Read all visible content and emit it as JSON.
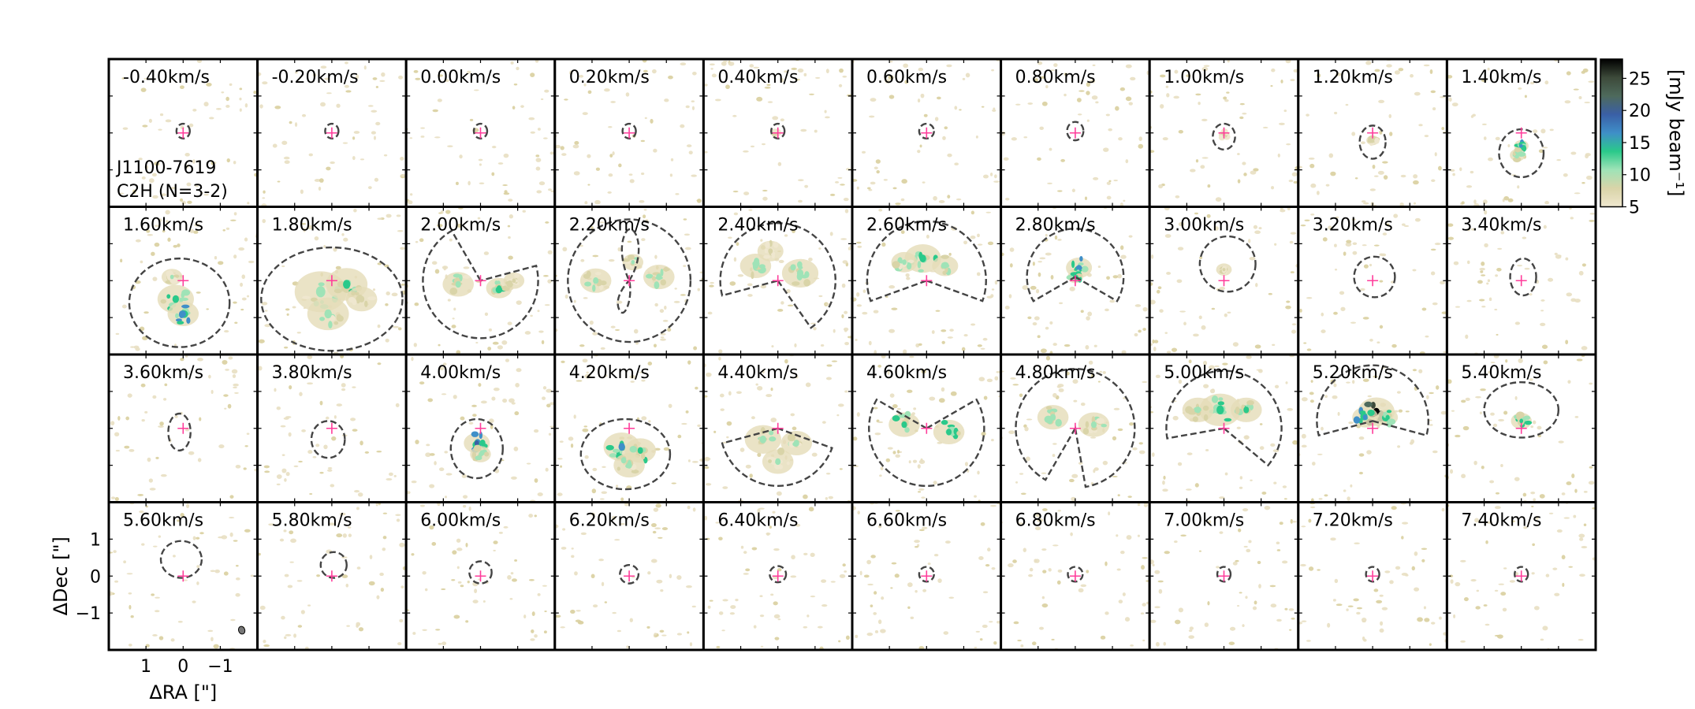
{
  "chart_data": {
    "type": "heatmap",
    "layout": {
      "rows": 4,
      "cols": 10
    },
    "source_name": "J1100-7619",
    "molecule_label": "C2H (N=3-2)",
    "velocity_unit": "km/s",
    "channel_labels": [
      "-0.40km/s",
      "-0.20km/s",
      "0.00km/s",
      "0.20km/s",
      "0.40km/s",
      "0.60km/s",
      "0.80km/s",
      "1.00km/s",
      "1.20km/s",
      "1.40km/s",
      "1.60km/s",
      "1.80km/s",
      "2.00km/s",
      "2.20km/s",
      "2.40km/s",
      "2.60km/s",
      "2.80km/s",
      "3.00km/s",
      "3.20km/s",
      "3.40km/s",
      "3.60km/s",
      "3.80km/s",
      "4.00km/s",
      "4.20km/s",
      "4.40km/s",
      "4.60km/s",
      "4.80km/s",
      "5.00km/s",
      "5.20km/s",
      "5.40km/s",
      "5.60km/s",
      "5.80km/s",
      "6.00km/s",
      "6.20km/s",
      "6.40km/s",
      "6.60km/s",
      "6.80km/s",
      "7.00km/s",
      "7.20km/s",
      "7.40km/s"
    ],
    "channel_velocities": [
      -0.4,
      -0.2,
      0.0,
      0.2,
      0.4,
      0.6,
      0.8,
      1.0,
      1.2,
      1.4,
      1.6,
      1.8,
      2.0,
      2.2,
      2.4,
      2.6,
      2.8,
      3.0,
      3.2,
      3.4,
      3.6,
      3.8,
      4.0,
      4.2,
      4.4,
      4.6,
      4.8,
      5.0,
      5.2,
      5.4,
      5.6,
      5.8,
      6.0,
      6.2,
      6.4,
      6.6,
      6.8,
      7.0,
      7.2,
      7.4
    ],
    "xlabel": "ΔRA [\"]",
    "ylabel": "ΔDec [\"]",
    "xlim": [
      2.0,
      -2.0
    ],
    "ylim": [
      -2.0,
      2.0
    ],
    "x_ticks": [
      1,
      0,
      -1
    ],
    "x_tick_labels": [
      "1",
      "0",
      "−1"
    ],
    "y_ticks": [
      1,
      0,
      -1
    ],
    "y_tick_labels": [
      "1",
      "0",
      "−1"
    ],
    "colorbar": {
      "label": "[mJy beam⁻¹]",
      "ticks": [
        5,
        10,
        15,
        20,
        25
      ],
      "range": [
        5,
        28
      ],
      "colors": [
        "#efe7cf",
        "#d9d4a8",
        "#9fe3b7",
        "#2ac98a",
        "#3f8fc8",
        "#3a5fa6",
        "#4e6a5c",
        "#3d4a3a",
        "#000000"
      ]
    },
    "marker_color": "#ff3d9b",
    "mask_color": "#444444",
    "channels": [
      {
        "mask": {
          "type": "ellipse",
          "dx": 0,
          "dy": 0.05,
          "rx": 0.18,
          "ry": 0.2
        },
        "emission": []
      },
      {
        "mask": {
          "type": "ellipse",
          "dx": 0,
          "dy": 0.05,
          "rx": 0.18,
          "ry": 0.2
        },
        "emission": []
      },
      {
        "mask": {
          "type": "ellipse",
          "dx": 0,
          "dy": 0.05,
          "rx": 0.18,
          "ry": 0.2
        },
        "emission": []
      },
      {
        "mask": {
          "type": "ellipse",
          "dx": 0,
          "dy": 0.05,
          "rx": 0.18,
          "ry": 0.2
        },
        "emission": []
      },
      {
        "mask": {
          "type": "ellipse",
          "dx": 0,
          "dy": 0.05,
          "rx": 0.18,
          "ry": 0.2
        },
        "emission": [
          {
            "x": 0.05,
            "y": -0.02,
            "r": 0.08,
            "v": 8
          }
        ]
      },
      {
        "mask": {
          "type": "ellipse",
          "dx": 0,
          "dy": 0.05,
          "rx": 0.2,
          "ry": 0.2
        },
        "emission": []
      },
      {
        "mask": {
          "type": "ellipse",
          "dx": 0,
          "dy": 0.05,
          "rx": 0.22,
          "ry": 0.25
        },
        "emission": []
      },
      {
        "mask": {
          "type": "ellipse",
          "dx": 0,
          "dy": -0.1,
          "rx": 0.3,
          "ry": 0.35
        },
        "emission": [
          {
            "x": 0,
            "y": -0.05,
            "r": 0.1,
            "v": 8
          }
        ]
      },
      {
        "mask": {
          "type": "ellipse",
          "dx": 0,
          "dy": -0.25,
          "rx": 0.35,
          "ry": 0.45
        },
        "emission": [
          {
            "x": 0,
            "y": -0.2,
            "r": 0.12,
            "v": 9
          }
        ]
      },
      {
        "mask": {
          "type": "ellipse",
          "dx": 0,
          "dy": -0.55,
          "rx": 0.6,
          "ry": 0.65
        },
        "emission": [
          {
            "x": 0,
            "y": -0.35,
            "r": 0.14,
            "v": 16
          },
          {
            "x": 0.1,
            "y": -0.6,
            "r": 0.15,
            "v": 12
          }
        ]
      },
      {
        "mask": {
          "type": "blob",
          "dx": 0.1,
          "dy": -0.6,
          "rx": 1.35,
          "ry": 1.2
        },
        "emission": [
          {
            "x": 0.2,
            "y": -0.5,
            "r": 0.35,
            "v": 14
          },
          {
            "x": 0.0,
            "y": -0.9,
            "r": 0.3,
            "v": 17
          },
          {
            "x": 0.3,
            "y": 0.1,
            "r": 0.2,
            "v": 10
          }
        ]
      },
      {
        "mask": {
          "type": "blob",
          "dx": 0,
          "dy": -0.5,
          "rx": 1.9,
          "ry": 1.4
        },
        "emission": [
          {
            "x": 0.3,
            "y": -0.3,
            "r": 0.5,
            "v": 12
          },
          {
            "x": -0.4,
            "y": -0.1,
            "r": 0.4,
            "v": 13
          },
          {
            "x": 0.1,
            "y": -0.9,
            "r": 0.4,
            "v": 11
          },
          {
            "x": -0.8,
            "y": -0.5,
            "r": 0.3,
            "v": 9
          }
        ]
      },
      {
        "mask": {
          "type": "sector",
          "dx": 0,
          "dy": 0,
          "r": 1.55,
          "a1": 120,
          "a2": 15
        },
        "emission": [
          {
            "x": 0.6,
            "y": -0.1,
            "r": 0.3,
            "v": 12
          },
          {
            "x": -0.5,
            "y": -0.2,
            "r": 0.25,
            "v": 13
          },
          {
            "x": -0.9,
            "y": 0.0,
            "r": 0.2,
            "v": 9
          }
        ]
      },
      {
        "mask": {
          "type": "circle8",
          "dx": 0,
          "dy": 0,
          "r": 1.65
        },
        "emission": [
          {
            "x": 0.9,
            "y": 0.0,
            "r": 0.3,
            "v": 11
          },
          {
            "x": -0.8,
            "y": 0.1,
            "r": 0.3,
            "v": 11
          },
          {
            "x": -0.1,
            "y": 0.5,
            "r": 0.2,
            "v": 10
          }
        ]
      },
      {
        "mask": {
          "type": "sector",
          "dx": 0,
          "dy": 0,
          "r": 1.55,
          "a1": -55,
          "a2": 195
        },
        "emission": [
          {
            "x": 0.6,
            "y": 0.4,
            "r": 0.3,
            "v": 12
          },
          {
            "x": -0.6,
            "y": 0.2,
            "r": 0.35,
            "v": 12
          },
          {
            "x": 0.2,
            "y": 0.8,
            "r": 0.25,
            "v": 9
          }
        ]
      },
      {
        "mask": {
          "type": "sector",
          "dx": 0,
          "dy": 0,
          "r": 1.6,
          "a1": -20,
          "a2": 200
        },
        "emission": [
          {
            "x": 0.1,
            "y": 0.6,
            "r": 0.35,
            "v": 14
          },
          {
            "x": -0.5,
            "y": 0.4,
            "r": 0.25,
            "v": 12
          },
          {
            "x": 0.6,
            "y": 0.5,
            "r": 0.25,
            "v": 10
          }
        ]
      },
      {
        "mask": {
          "type": "sector",
          "dx": 0,
          "dy": 0.1,
          "r": 1.3,
          "a1": -30,
          "a2": 210
        },
        "emission": [
          {
            "x": -0.1,
            "y": 0.35,
            "r": 0.25,
            "v": 17
          },
          {
            "x": 0.0,
            "y": 0.1,
            "r": 0.15,
            "v": 14
          }
        ]
      },
      {
        "mask": {
          "type": "ellipse",
          "dx": -0.1,
          "dy": 0.45,
          "rx": 0.75,
          "ry": 0.75
        },
        "emission": [
          {
            "x": 0,
            "y": 0.3,
            "r": 0.15,
            "v": 8
          }
        ]
      },
      {
        "mask": {
          "type": "ellipse",
          "dx": -0.05,
          "dy": 0.1,
          "rx": 0.55,
          "ry": 0.55
        },
        "emission": []
      },
      {
        "mask": {
          "type": "ellipse",
          "dx": -0.05,
          "dy": 0.1,
          "rx": 0.35,
          "ry": 0.5
        },
        "emission": []
      },
      {
        "mask": {
          "type": "ellipse",
          "dx": 0.1,
          "dy": -0.1,
          "rx": 0.3,
          "ry": 0.5
        },
        "emission": []
      },
      {
        "mask": {
          "type": "ellipse",
          "dx": 0.1,
          "dy": -0.3,
          "rx": 0.45,
          "ry": 0.5
        },
        "emission": []
      },
      {
        "mask": {
          "type": "ellipse",
          "dx": 0.1,
          "dy": -0.55,
          "rx": 0.7,
          "ry": 0.8
        },
        "emission": [
          {
            "x": 0.1,
            "y": -0.4,
            "r": 0.25,
            "v": 18
          },
          {
            "x": 0.0,
            "y": -0.7,
            "r": 0.2,
            "v": 12
          }
        ]
      },
      {
        "mask": {
          "type": "ellipse",
          "dx": 0.1,
          "dy": -0.7,
          "rx": 1.2,
          "ry": 0.95
        },
        "emission": [
          {
            "x": 0.2,
            "y": -0.5,
            "r": 0.35,
            "v": 16
          },
          {
            "x": -0.3,
            "y": -0.6,
            "r": 0.3,
            "v": 13
          },
          {
            "x": 0.0,
            "y": -1.0,
            "r": 0.3,
            "v": 12
          }
        ]
      },
      {
        "mask": {
          "type": "sector",
          "dx": 0,
          "dy": 0,
          "r": 1.55,
          "a1": 195,
          "a2": -20
        },
        "emission": [
          {
            "x": 0.4,
            "y": -0.3,
            "r": 0.35,
            "v": 12
          },
          {
            "x": -0.5,
            "y": -0.4,
            "r": 0.3,
            "v": 11
          },
          {
            "x": 0.0,
            "y": -0.9,
            "r": 0.3,
            "v": 10
          }
        ]
      },
      {
        "mask": {
          "type": "sector",
          "dx": 0,
          "dy": 0,
          "r": 1.55,
          "a1": 150,
          "a2": 30
        },
        "emission": [
          {
            "x": 0.6,
            "y": 0.1,
            "r": 0.3,
            "v": 13
          },
          {
            "x": -0.6,
            "y": -0.1,
            "r": 0.3,
            "v": 13
          }
        ]
      },
      {
        "mask": {
          "type": "sector",
          "dx": 0,
          "dy": 0,
          "r": 1.6,
          "a1": -80,
          "a2": 240
        },
        "emission": [
          {
            "x": 0.6,
            "y": 0.3,
            "r": 0.3,
            "v": 12
          },
          {
            "x": -0.5,
            "y": 0.1,
            "r": 0.3,
            "v": 11
          }
        ]
      },
      {
        "mask": {
          "type": "sector",
          "dx": 0,
          "dy": 0,
          "r": 1.55,
          "a1": -40,
          "a2": 190
        },
        "emission": [
          {
            "x": 0.1,
            "y": 0.5,
            "r": 0.4,
            "v": 15
          },
          {
            "x": -0.6,
            "y": 0.5,
            "r": 0.3,
            "v": 13
          },
          {
            "x": 0.7,
            "y": 0.5,
            "r": 0.3,
            "v": 12
          }
        ]
      },
      {
        "mask": {
          "type": "sector",
          "dx": 0,
          "dy": 0.2,
          "r": 1.5,
          "a1": -15,
          "a2": 195
        },
        "emission": [
          {
            "x": -0.1,
            "y": 0.45,
            "r": 0.35,
            "v": 27
          },
          {
            "x": 0.2,
            "y": 0.3,
            "r": 0.25,
            "v": 17
          },
          {
            "x": -0.4,
            "y": 0.3,
            "r": 0.2,
            "v": 14
          }
        ]
      },
      {
        "mask": {
          "type": "blob",
          "dx": 0,
          "dy": 0.5,
          "rx": 1.0,
          "ry": 0.75
        },
        "emission": [
          {
            "x": 0.0,
            "y": 0.2,
            "r": 0.2,
            "v": 14
          }
        ]
      },
      {
        "mask": {
          "type": "ellipse",
          "dx": 0.05,
          "dy": 0.45,
          "rx": 0.55,
          "ry": 0.5
        },
        "emission": []
      },
      {
        "mask": {
          "type": "ellipse",
          "dx": -0.05,
          "dy": 0.3,
          "rx": 0.35,
          "ry": 0.35
        },
        "emission": []
      },
      {
        "mask": {
          "type": "ellipse",
          "dx": 0,
          "dy": 0.1,
          "rx": 0.3,
          "ry": 0.3
        },
        "emission": []
      },
      {
        "mask": {
          "type": "ellipse",
          "dx": 0,
          "dy": 0.05,
          "rx": 0.25,
          "ry": 0.25
        },
        "emission": []
      },
      {
        "mask": {
          "type": "ellipse",
          "dx": 0,
          "dy": 0.05,
          "rx": 0.22,
          "ry": 0.22
        },
        "emission": []
      },
      {
        "mask": {
          "type": "ellipse",
          "dx": 0,
          "dy": 0.05,
          "rx": 0.2,
          "ry": 0.2
        },
        "emission": []
      },
      {
        "mask": {
          "type": "ellipse",
          "dx": 0,
          "dy": 0.05,
          "rx": 0.2,
          "ry": 0.2
        },
        "emission": []
      },
      {
        "mask": {
          "type": "ellipse",
          "dx": 0,
          "dy": 0.05,
          "rx": 0.18,
          "ry": 0.2
        },
        "emission": []
      },
      {
        "mask": {
          "type": "ellipse",
          "dx": 0,
          "dy": 0.05,
          "rx": 0.18,
          "ry": 0.2
        },
        "emission": []
      },
      {
        "mask": {
          "type": "ellipse",
          "dx": 0,
          "dy": 0.05,
          "rx": 0.18,
          "ry": 0.2
        },
        "emission": []
      }
    ]
  }
}
